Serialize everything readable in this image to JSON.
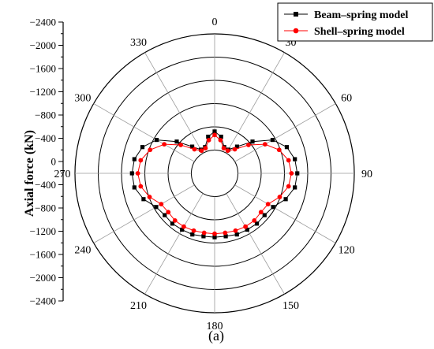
{
  "chart_data": {
    "type": "polar-line",
    "ylabel": "Axial force (kN)",
    "caption": "(a)",
    "radial_axis": {
      "ticks": [
        "−2400",
        "−2000",
        "−1600",
        "−1200",
        "−800",
        "−400",
        "0",
        "−400",
        "−800",
        "−1200",
        "−1600",
        "−2000",
        "−2400"
      ],
      "range": [
        0,
        -2400
      ],
      "inner_hole": 400,
      "rings": [
        400,
        800,
        1200,
        1600,
        2000,
        2400
      ]
    },
    "angular_axis": {
      "labels": [
        "0",
        "30",
        "60",
        "90",
        "120",
        "150",
        "180",
        "210",
        "240",
        "270",
        "300",
        "330"
      ],
      "degrees": [
        0,
        30,
        60,
        90,
        120,
        150,
        180,
        210,
        240,
        270,
        300,
        330
      ],
      "direction": "clockwise",
      "zero": "top"
    },
    "legend": {
      "position": "top-right"
    },
    "series": [
      {
        "name": "Beam–spring model",
        "color": "#000000",
        "marker": "square",
        "angles": [
          0,
          10,
          20,
          30,
          40,
          50,
          60,
          70,
          80,
          90,
          100,
          110,
          120,
          130,
          140,
          150,
          160,
          170,
          180,
          190,
          200,
          210,
          220,
          230,
          240,
          250,
          260,
          270,
          280,
          290,
          300,
          310,
          320,
          330,
          340,
          350
        ],
        "values": [
          -720,
          -640,
          -480,
          -470,
          -600,
          -850,
          -1150,
          -1320,
          -1400,
          -1420,
          -1400,
          -1300,
          -1160,
          -1120,
          -1130,
          -1120,
          -1120,
          -1100,
          -1100,
          -1100,
          -1120,
          -1120,
          -1130,
          -1120,
          -1160,
          -1300,
          -1400,
          -1420,
          -1400,
          -1320,
          -1150,
          -850,
          -600,
          -470,
          -480,
          -640
        ]
      },
      {
        "name": "Shell–spring model",
        "color": "#ff0000",
        "marker": "circle",
        "angles": [
          0,
          10,
          20,
          30,
          40,
          50,
          60,
          70,
          80,
          90,
          100,
          110,
          120,
          130,
          140,
          150,
          160,
          170,
          180,
          190,
          200,
          210,
          220,
          230,
          240,
          250,
          260,
          270,
          280,
          290,
          300,
          310,
          320,
          330,
          340,
          350
        ],
        "values": [
          -660,
          -580,
          -460,
          -450,
          -540,
          -760,
          -1000,
          -1180,
          -1290,
          -1320,
          -1290,
          -1190,
          -1060,
          -1040,
          -1060,
          -1060,
          -1050,
          -1040,
          -1040,
          -1040,
          -1050,
          -1060,
          -1060,
          -1040,
          -1060,
          -1190,
          -1290,
          -1320,
          -1290,
          -1180,
          -1000,
          -760,
          -540,
          -450,
          -460,
          -580
        ]
      }
    ]
  }
}
